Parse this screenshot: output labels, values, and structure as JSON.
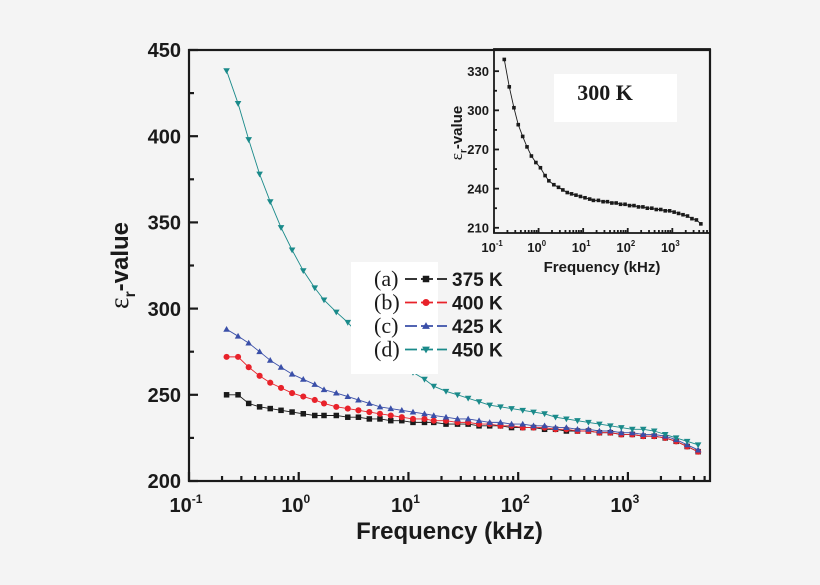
{
  "chart_data": [
    {
      "type": "line",
      "xlabel": "Frequency (kHz)",
      "ylabel": {
        "symbol": "ε",
        "sub": "r",
        "rest": "-value"
      },
      "xscale": "log",
      "xlim": [
        0.1,
        5600
      ],
      "ylim": [
        200,
        450
      ],
      "yticks": [
        200,
        250,
        300,
        350,
        400,
        450
      ],
      "xticks": [
        {
          "base": "10",
          "exp": "-1"
        },
        {
          "base": "10",
          "exp": "0"
        },
        {
          "base": "10",
          "exp": "1"
        },
        {
          "base": "10",
          "exp": "2"
        },
        {
          "base": "10",
          "exp": "3"
        }
      ],
      "grid": false,
      "legend_placement": "center",
      "x": [
        0.22,
        0.28,
        0.35,
        0.44,
        0.55,
        0.69,
        0.87,
        1.1,
        1.4,
        1.7,
        2.2,
        2.8,
        3.5,
        4.4,
        5.5,
        6.9,
        8.7,
        11,
        14,
        17,
        22,
        28,
        35,
        44,
        55,
        69,
        87,
        110,
        138,
        174,
        219,
        275,
        347,
        437,
        550,
        692,
        871,
        1097,
        1380,
        1738,
        2188,
        2754,
        3467,
        4365
      ],
      "series": [
        {
          "tag": "(a)",
          "name": "375 K",
          "color": "#1a1a1a",
          "marker": "square",
          "values": [
            250,
            250,
            245,
            243,
            242,
            241,
            240,
            239,
            238,
            238,
            238,
            237,
            237,
            236,
            236,
            235,
            235,
            234,
            234,
            234,
            233,
            233,
            233,
            232,
            232,
            232,
            231,
            231,
            231,
            230,
            230,
            229,
            229,
            229,
            228,
            228,
            227,
            227,
            226,
            226,
            225,
            223,
            220,
            217
          ]
        },
        {
          "tag": "(b)",
          "name": "400 K",
          "color": "#e8222a",
          "marker": "circle",
          "values": [
            272,
            272,
            266,
            261,
            257,
            254,
            251,
            249,
            247,
            245,
            243,
            242,
            241,
            240,
            239,
            238,
            237,
            236,
            236,
            235,
            235,
            234,
            234,
            233,
            233,
            232,
            232,
            231,
            231,
            231,
            230,
            230,
            229,
            229,
            228,
            228,
            227,
            227,
            226,
            226,
            225,
            223,
            220,
            217
          ]
        },
        {
          "tag": "(c)",
          "name": "425 K",
          "color": "#3a4fa8",
          "marker": "triangle-up",
          "values": [
            288,
            284,
            280,
            275,
            270,
            266,
            262,
            259,
            256,
            253,
            251,
            249,
            247,
            245,
            243,
            242,
            241,
            240,
            239,
            238,
            237,
            236,
            236,
            235,
            234,
            234,
            233,
            233,
            232,
            232,
            231,
            231,
            230,
            230,
            229,
            229,
            228,
            228,
            227,
            227,
            226,
            224,
            221,
            218
          ]
        },
        {
          "tag": "(d)",
          "name": "450 K",
          "color": "#1a8a8a",
          "marker": "triangle-down",
          "values": [
            438,
            419,
            398,
            378,
            362,
            347,
            334,
            322,
            312,
            305,
            298,
            292,
            285,
            278,
            271,
            267,
            265,
            263,
            259,
            255,
            252,
            250,
            248,
            246,
            244,
            243,
            242,
            241,
            240,
            239,
            237,
            236,
            235,
            234,
            233,
            232,
            231,
            230,
            230,
            229,
            227,
            225,
            223,
            221
          ]
        }
      ]
    },
    {
      "type": "line",
      "inset": true,
      "annotation": "300 K",
      "xlabel": "Frequency (kHz)",
      "ylabel": {
        "symbol": "ε",
        "sub": "r",
        "rest": "-value"
      },
      "xscale": "log",
      "xlim": [
        0.1,
        7000
      ],
      "ylim": [
        206,
        347
      ],
      "yticks": [
        210,
        240,
        270,
        300,
        330
      ],
      "xticks": [
        {
          "base": "10",
          "exp": "-1"
        },
        {
          "base": "10",
          "exp": "0"
        },
        {
          "base": "10",
          "exp": "1"
        },
        {
          "base": "10",
          "exp": "2"
        },
        {
          "base": "10",
          "exp": "3"
        }
      ],
      "x": [
        0.17,
        0.22,
        0.28,
        0.35,
        0.44,
        0.55,
        0.69,
        0.87,
        1.1,
        1.4,
        1.7,
        2.2,
        2.8,
        3.5,
        4.4,
        5.5,
        6.9,
        8.7,
        11,
        14,
        17,
        22,
        28,
        35,
        44,
        55,
        69,
        87,
        110,
        138,
        174,
        219,
        275,
        347,
        437,
        550,
        692,
        871,
        1097,
        1380,
        1738,
        2188,
        2754,
        3467,
        4365
      ],
      "series": [
        {
          "color": "#1a1a1a",
          "marker": "square",
          "values": [
            339,
            318,
            302,
            289,
            280,
            272,
            265,
            260,
            256,
            250,
            246,
            243,
            241,
            239,
            237,
            236,
            235,
            234,
            233,
            232,
            231,
            231,
            230,
            230,
            229,
            229,
            228,
            228,
            227,
            227,
            226,
            226,
            225,
            225,
            224,
            224,
            223,
            223,
            222,
            221,
            220,
            219,
            217,
            216,
            213
          ]
        }
      ]
    }
  ]
}
